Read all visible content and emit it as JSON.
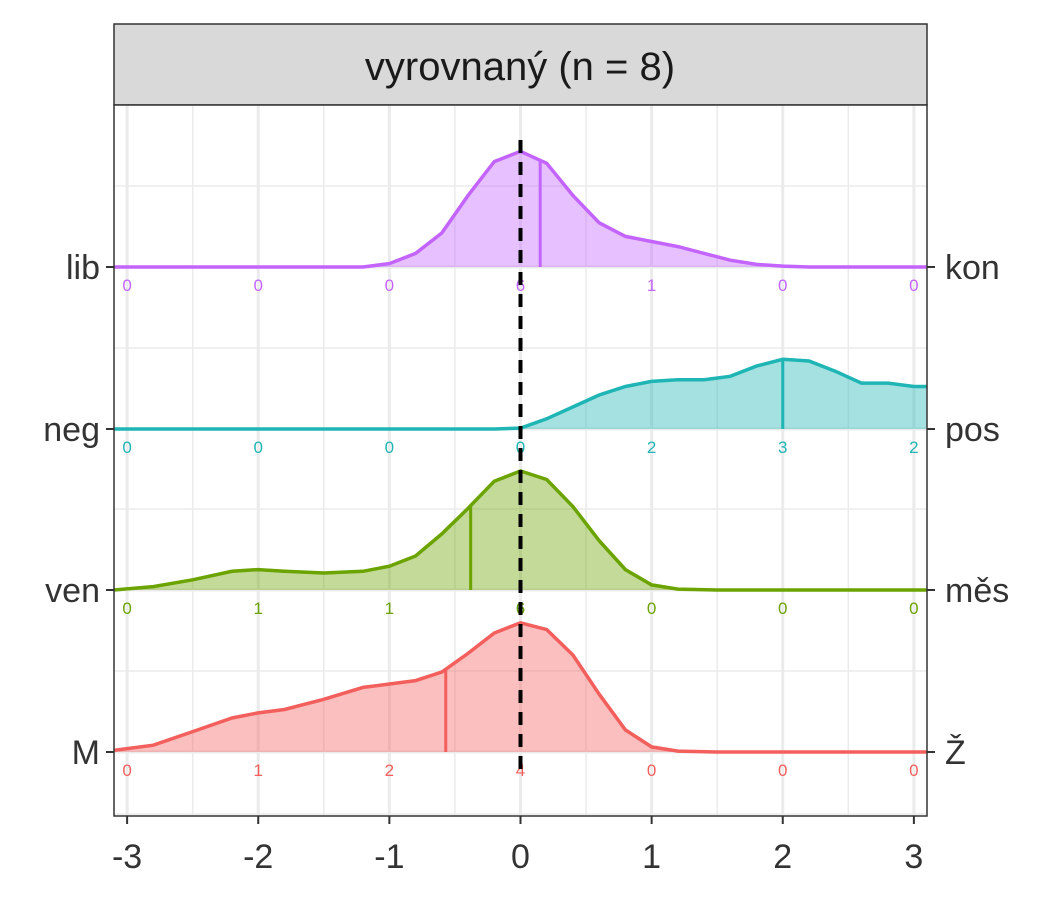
{
  "chart_data": {
    "type": "area",
    "title": "vyrovnaný (n = 8)",
    "xlabel": "",
    "ylabel": "",
    "xlim": [
      -3.1,
      3.1
    ],
    "x_ticks": [
      "-3",
      "-2",
      "-1",
      "0",
      "1",
      "2",
      "3"
    ],
    "reference_line_x": 0,
    "reference_line_style": "dashed black",
    "grid": true,
    "legend": "none",
    "count_bins": [
      -3,
      -2,
      -1,
      0,
      1,
      2,
      3
    ],
    "series": [
      {
        "name": "M – Ž",
        "left_label": "M",
        "right_label": "Ž",
        "color": "#F25F5C",
        "mean": -0.57,
        "counts": [
          "0",
          "1",
          "2",
          "4",
          "0",
          "0",
          "0"
        ],
        "density": [
          [
            -3.1,
            0.01
          ],
          [
            -2.8,
            0.04
          ],
          [
            -2.5,
            0.12
          ],
          [
            -2.2,
            0.2
          ],
          [
            -2.0,
            0.23
          ],
          [
            -1.8,
            0.25
          ],
          [
            -1.5,
            0.31
          ],
          [
            -1.2,
            0.38
          ],
          [
            -1.0,
            0.4
          ],
          [
            -0.8,
            0.42
          ],
          [
            -0.6,
            0.47
          ],
          [
            -0.4,
            0.58
          ],
          [
            -0.2,
            0.7
          ],
          [
            0.0,
            0.76
          ],
          [
            0.2,
            0.72
          ],
          [
            0.4,
            0.57
          ],
          [
            0.6,
            0.34
          ],
          [
            0.8,
            0.13
          ],
          [
            1.0,
            0.03
          ],
          [
            1.2,
            0.005
          ],
          [
            1.5,
            0.0
          ],
          [
            3.1,
            0.0
          ]
        ]
      },
      {
        "name": "ven – měs",
        "left_label": "ven",
        "right_label": "měs",
        "color": "#6BA300",
        "mean": -0.38,
        "counts": [
          "0",
          "1",
          "1",
          "6",
          "0",
          "0",
          "0"
        ],
        "density": [
          [
            -3.1,
            0.0
          ],
          [
            -2.8,
            0.02
          ],
          [
            -2.5,
            0.06
          ],
          [
            -2.2,
            0.11
          ],
          [
            -2.0,
            0.12
          ],
          [
            -1.8,
            0.11
          ],
          [
            -1.5,
            0.1
          ],
          [
            -1.2,
            0.11
          ],
          [
            -1.0,
            0.14
          ],
          [
            -0.8,
            0.2
          ],
          [
            -0.6,
            0.33
          ],
          [
            -0.4,
            0.48
          ],
          [
            -0.2,
            0.64
          ],
          [
            0.0,
            0.7
          ],
          [
            0.2,
            0.65
          ],
          [
            0.4,
            0.49
          ],
          [
            0.6,
            0.29
          ],
          [
            0.8,
            0.12
          ],
          [
            1.0,
            0.03
          ],
          [
            1.2,
            0.005
          ],
          [
            1.5,
            0.0
          ],
          [
            3.1,
            0.0
          ]
        ]
      },
      {
        "name": "neg – pos",
        "left_label": "neg",
        "right_label": "pos",
        "color": "#1FB5B5",
        "mean": 2.0,
        "counts": [
          "0",
          "0",
          "0",
          "0",
          "2",
          "3",
          "2"
        ],
        "density": [
          [
            -3.1,
            0.0
          ],
          [
            -0.2,
            0.0
          ],
          [
            0.0,
            0.005
          ],
          [
            0.2,
            0.06
          ],
          [
            0.4,
            0.13
          ],
          [
            0.6,
            0.2
          ],
          [
            0.8,
            0.25
          ],
          [
            1.0,
            0.28
          ],
          [
            1.2,
            0.29
          ],
          [
            1.4,
            0.29
          ],
          [
            1.6,
            0.31
          ],
          [
            1.8,
            0.37
          ],
          [
            2.0,
            0.41
          ],
          [
            2.2,
            0.4
          ],
          [
            2.4,
            0.34
          ],
          [
            2.6,
            0.27
          ],
          [
            2.8,
            0.27
          ],
          [
            3.0,
            0.25
          ],
          [
            3.1,
            0.25
          ]
        ]
      },
      {
        "name": "lib – kon",
        "left_label": "lib",
        "right_label": "kon",
        "color": "#C464FF",
        "mean": 0.15,
        "counts": [
          "0",
          "0",
          "0",
          "6",
          "1",
          "0",
          "0"
        ],
        "density": [
          [
            -3.1,
            0.0
          ],
          [
            -1.2,
            0.0
          ],
          [
            -1.0,
            0.02
          ],
          [
            -0.8,
            0.08
          ],
          [
            -0.6,
            0.2
          ],
          [
            -0.4,
            0.42
          ],
          [
            -0.2,
            0.62
          ],
          [
            0.0,
            0.68
          ],
          [
            0.2,
            0.61
          ],
          [
            0.4,
            0.42
          ],
          [
            0.6,
            0.26
          ],
          [
            0.8,
            0.18
          ],
          [
            1.0,
            0.15
          ],
          [
            1.2,
            0.12
          ],
          [
            1.4,
            0.08
          ],
          [
            1.6,
            0.04
          ],
          [
            1.8,
            0.015
          ],
          [
            2.0,
            0.005
          ],
          [
            2.2,
            0.0
          ],
          [
            3.1,
            0.0
          ]
        ]
      }
    ]
  }
}
